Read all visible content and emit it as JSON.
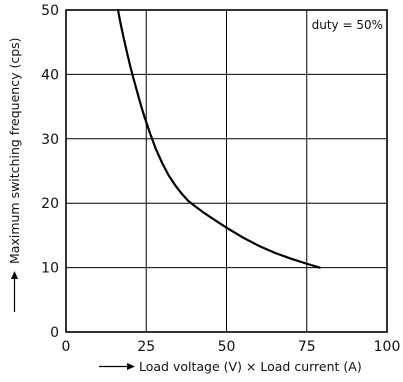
{
  "chart_data": {
    "type": "line",
    "xlabel": "Load voltage (V) × Load current (A)",
    "ylabel": "Maximum switching frequency (cps)",
    "annotation": "duty = 50%",
    "xlim": [
      0,
      100
    ],
    "ylim": [
      0,
      50
    ],
    "x_ticks": [
      0,
      25,
      50,
      75,
      100
    ],
    "y_ticks": [
      0,
      10,
      20,
      30,
      40,
      50
    ],
    "grid": true,
    "series": [
      {
        "x": [
          16.2,
          17,
          18,
          19,
          20,
          21,
          22,
          23,
          24,
          25,
          26,
          28,
          30,
          32,
          34,
          36,
          38,
          40,
          43,
          46,
          50,
          55,
          60,
          65,
          70,
          75,
          79
        ],
        "y": [
          50,
          47.9,
          45.6,
          43.4,
          41.3,
          39.4,
          37.6,
          35.8,
          34.1,
          32.6,
          31.1,
          28.4,
          26.2,
          24.3,
          22.8,
          21.5,
          20.4,
          19.6,
          18.5,
          17.5,
          16.2,
          14.7,
          13.4,
          12.3,
          11.4,
          10.6,
          10
        ]
      }
    ],
    "colors": {
      "line": "#000000",
      "grid": "#000000",
      "frame": "#000000"
    }
  }
}
